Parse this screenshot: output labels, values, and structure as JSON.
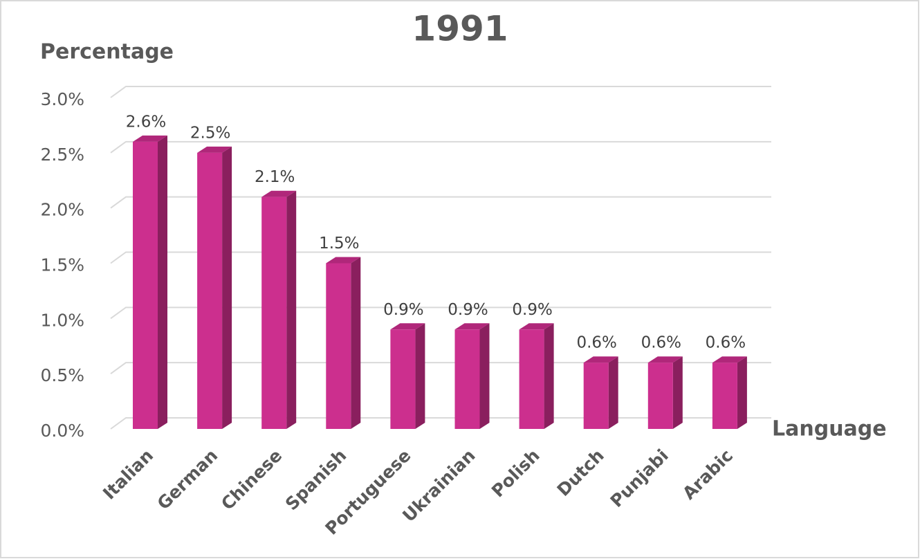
{
  "chart_data": {
    "type": "bar3d",
    "title": "1991",
    "y_label": "Percentage",
    "x_label": "Language",
    "categories": [
      "Italian",
      "German",
      "Chinese",
      "Spanish",
      "Portuguese",
      "Ukrainian",
      "Polish",
      "Dutch",
      "Punjabi",
      "Arabic"
    ],
    "values": [
      2.6,
      2.5,
      2.1,
      1.5,
      0.9,
      0.9,
      0.9,
      0.6,
      0.6,
      0.6
    ],
    "value_labels": [
      "2.6%",
      "2.5%",
      "2.1%",
      "1.5%",
      "0.9%",
      "0.9%",
      "0.9%",
      "0.6%",
      "0.6%",
      "0.6%"
    ],
    "color": "#cc2f8e",
    "ylim": [
      0,
      3
    ],
    "yticks": [
      {
        "value": 0,
        "label": "0.0%"
      },
      {
        "value": 0.5,
        "label": "0.5%"
      },
      {
        "value": 1,
        "label": "1.0%"
      },
      {
        "value": 1.5,
        "label": "1.5%"
      },
      {
        "value": 2,
        "label": "2.0%"
      },
      {
        "value": 2.5,
        "label": "2.5%"
      },
      {
        "value": 3,
        "label": "3.0%"
      }
    ],
    "grid": true
  }
}
